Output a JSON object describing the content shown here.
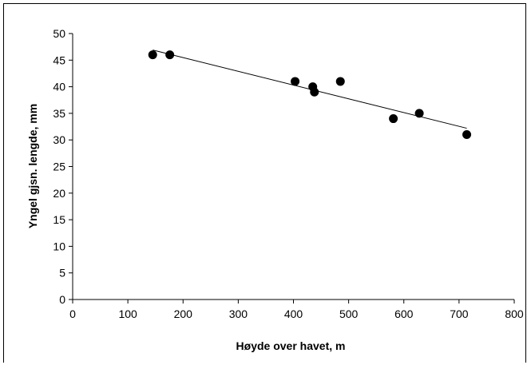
{
  "chart_data": {
    "type": "scatter",
    "title": "",
    "xlabel": "Høyde over havet, m",
    "ylabel": "Yngel gjsn. lengde, mm",
    "xlim": [
      0,
      800
    ],
    "ylim": [
      0,
      50
    ],
    "xticks": [
      "0",
      "100",
      "200",
      "300",
      "400",
      "500",
      "600",
      "700",
      "800"
    ],
    "yticks": [
      "0",
      "5",
      "10",
      "15",
      "20",
      "25",
      "30",
      "35",
      "40",
      "45",
      "50"
    ],
    "grid": false,
    "legend": "none",
    "marker_color": "#000000",
    "series": [
      {
        "points": [
          {
            "x": 145,
            "y": 46
          },
          {
            "x": 176,
            "y": 46
          },
          {
            "x": 403,
            "y": 41
          },
          {
            "x": 435,
            "y": 40
          },
          {
            "x": 438,
            "y": 39
          },
          {
            "x": 485,
            "y": 41
          },
          {
            "x": 581,
            "y": 34
          },
          {
            "x": 628,
            "y": 35
          },
          {
            "x": 714,
            "y": 31
          }
        ]
      }
    ],
    "trendline": {
      "type": "linear",
      "from": {
        "x": 145,
        "y": 46.9
      },
      "to": {
        "x": 714,
        "y": 32.2
      }
    }
  }
}
